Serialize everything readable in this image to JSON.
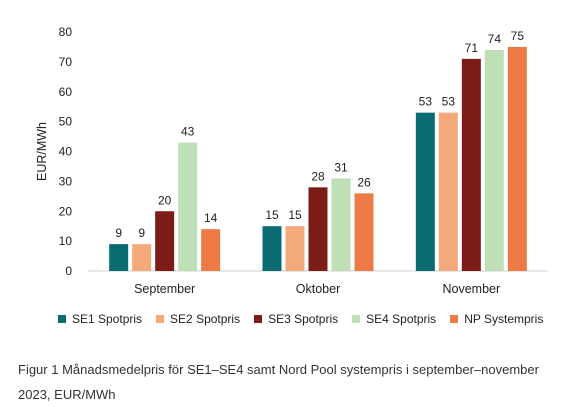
{
  "chart_data": {
    "type": "bar",
    "categories": [
      "September",
      "Oktober",
      "November"
    ],
    "series": [
      {
        "name": "SE1 Spotpris",
        "color": "#0b6b73",
        "values": [
          9,
          15,
          53
        ]
      },
      {
        "name": "SE2 Spotpris",
        "color": "#f4a97a",
        "values": [
          9,
          15,
          53
        ]
      },
      {
        "name": "SE3 Spotpris",
        "color": "#7b1c17",
        "values": [
          20,
          28,
          71
        ]
      },
      {
        "name": "SE4 Spotpris",
        "color": "#bfe0b6",
        "values": [
          43,
          31,
          74
        ]
      },
      {
        "name": "NP Systempris",
        "color": "#ee7a45",
        "values": [
          14,
          26,
          75
        ]
      }
    ],
    "ylabel": "EUR/MWh",
    "xlabel": "",
    "ylim": [
      0,
      80
    ],
    "yticks": [
      0,
      10,
      20,
      30,
      40,
      50,
      60,
      70,
      80
    ],
    "legend_position": "bottom",
    "grid": false
  },
  "caption": "Figur 1 Månadsmedelpris för SE1–SE4 samt Nord Pool systempris i september–november 2023, EUR/MWh"
}
